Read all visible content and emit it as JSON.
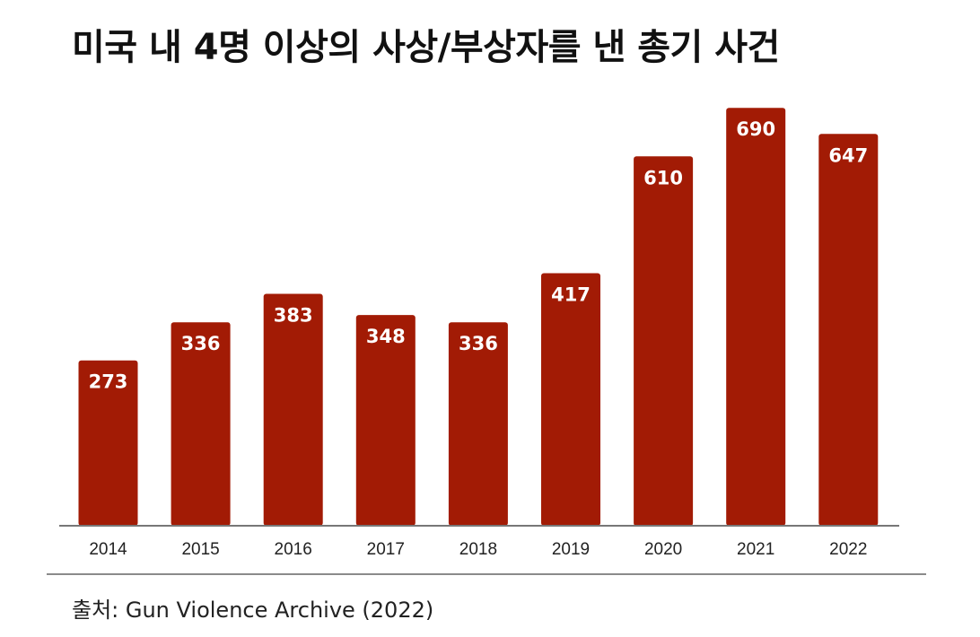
{
  "title": "미국 내 4명 이상의 사상/부상자를 낸 총기 사건",
  "source": "출처: Gun Violence Archive (2022)",
  "colors": {
    "bar": "#a21b05",
    "axis": "#777777",
    "text": "#222222"
  },
  "chart_data": {
    "type": "bar",
    "title": "미국 내 4명 이상의 사상/부상자를 낸 총기 사건",
    "categories": [
      "2014",
      "2015",
      "2016",
      "2017",
      "2018",
      "2019",
      "2020",
      "2021",
      "2022"
    ],
    "values": [
      273,
      336,
      383,
      348,
      336,
      417,
      610,
      690,
      647
    ],
    "data_labels": [
      "273",
      "336",
      "383",
      "348",
      "336",
      "417",
      "610",
      "690",
      "647"
    ],
    "xlabel": "",
    "ylabel": "",
    "ylim": [
      0,
      700
    ],
    "grid": false,
    "legend": "none"
  }
}
